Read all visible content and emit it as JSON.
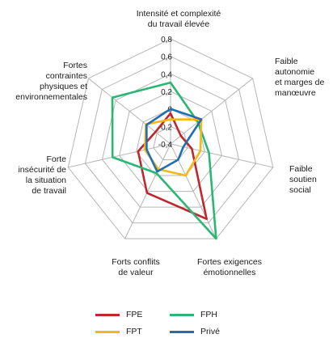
{
  "chart_data": {
    "type": "radar",
    "axes": [
      "Intensité et complexité\ndu travail élevée",
      "Faible\nautonomie\net marges de\nmanœuvre",
      "Faible\nsoutien\nsocial",
      "Fortes exigences\némotionnelles",
      "Forts conflits\nde valeur",
      "Forte\ninsécurité de\nla situation\nde travail",
      "Fortes\ncontraintes\nphysiques et\nenvironnementales"
    ],
    "ticks": [
      "-0,4",
      "-0,2",
      "0",
      "0,2",
      "0,4",
      "0,6",
      "0,8"
    ],
    "rlim": [
      -0.4,
      0.8
    ],
    "series": [
      {
        "name": "FPE",
        "color": "#c0272d",
        "values": [
          -0.05,
          -0.25,
          -0.15,
          0.55,
          0.22,
          -0.02,
          -0.18
        ]
      },
      {
        "name": "FPH",
        "color": "#2bb673",
        "values": [
          0.3,
          0.0,
          0.05,
          0.8,
          -0.03,
          0.28,
          0.45
        ]
      },
      {
        "name": "FPT",
        "color": "#f7b718",
        "values": [
          -0.12,
          0.05,
          -0.05,
          0.0,
          -0.08,
          -0.1,
          -0.04
        ]
      },
      {
        "name": "Privé",
        "color": "#1f6fb2",
        "values": [
          0.0,
          0.05,
          -0.25,
          -0.2,
          -0.05,
          -0.12,
          -0.05
        ]
      }
    ],
    "legend_position": "bottom"
  }
}
